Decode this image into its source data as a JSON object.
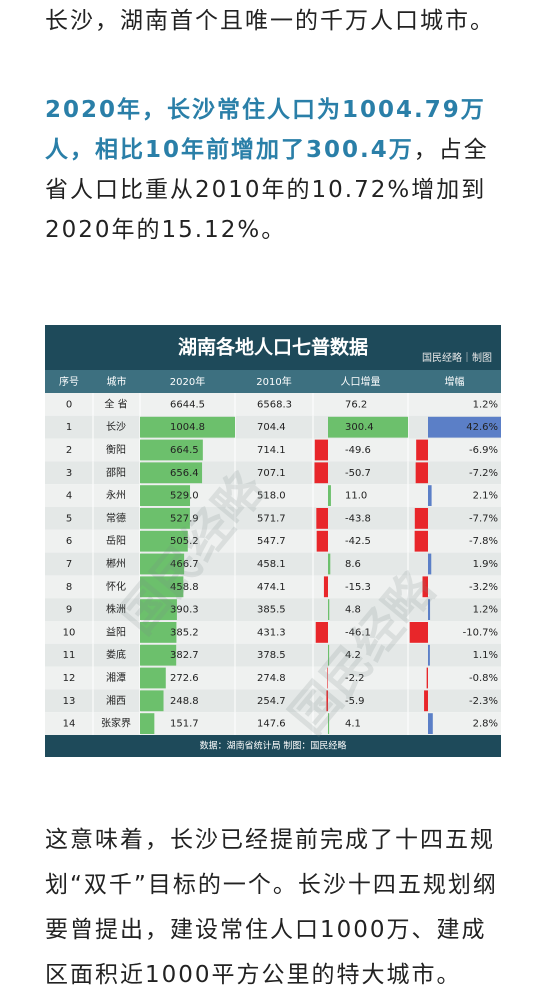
{
  "intro": "长沙，湖南首个且唯一的千万人口城市。",
  "highlight": {
    "bold": "2020年，长沙常住人口为1004.79万人，相比10年前增加了300.4万",
    "rest": "，占全省人口比重从2010年的10.72%增加到2020年的15.12%。"
  },
  "table": {
    "title": "湖南各地人口七普数据",
    "credit": "国民经略｜制图",
    "watermark": "国民经略",
    "columns": [
      "序号",
      "城市",
      "2020年",
      "2010年",
      "人口增量",
      "增幅"
    ],
    "rows": [
      [
        "0",
        "全 省",
        "6644.5",
        "6568.3",
        "76.2",
        "1.2%"
      ],
      [
        "1",
        "长沙",
        "1004.8",
        "704.4",
        "300.4",
        "42.6%"
      ],
      [
        "2",
        "衡阳",
        "664.5",
        "714.1",
        "-49.6",
        "-6.9%"
      ],
      [
        "3",
        "邵阳",
        "656.4",
        "707.1",
        "-50.7",
        "-7.2%"
      ],
      [
        "4",
        "永州",
        "529.0",
        "518.0",
        "11.0",
        "2.1%"
      ],
      [
        "5",
        "常德",
        "527.9",
        "571.7",
        "-43.8",
        "-7.7%"
      ],
      [
        "6",
        "岳阳",
        "505.2",
        "547.7",
        "-42.5",
        "-7.8%"
      ],
      [
        "7",
        "郴州",
        "466.7",
        "458.1",
        "8.6",
        "1.9%"
      ],
      [
        "8",
        "怀化",
        "458.8",
        "474.1",
        "-15.3",
        "-3.2%"
      ],
      [
        "9",
        "株洲",
        "390.3",
        "385.5",
        "4.8",
        "1.2%"
      ],
      [
        "10",
        "益阳",
        "385.2",
        "431.3",
        "-46.1",
        "-10.7%"
      ],
      [
        "11",
        "娄底",
        "382.7",
        "378.5",
        "4.2",
        "1.1%"
      ],
      [
        "12",
        "湘潭",
        "272.6",
        "274.8",
        "-2.2",
        "-0.8%"
      ],
      [
        "13",
        "湘西",
        "248.8",
        "254.7",
        "-5.9",
        "-2.3%"
      ],
      [
        "14",
        "张家界",
        "151.7",
        "147.6",
        "4.1",
        "2.8%"
      ]
    ],
    "source": "数据：湖南省统计局 制图：国民经略"
  },
  "outro": "这意味着，长沙已经提前完成了十四五规划“双千”目标的一个。长沙十四五规划纲要曾提出，建设常住人口1000万、建成区面积近1000平方公里的特大城市。"
}
